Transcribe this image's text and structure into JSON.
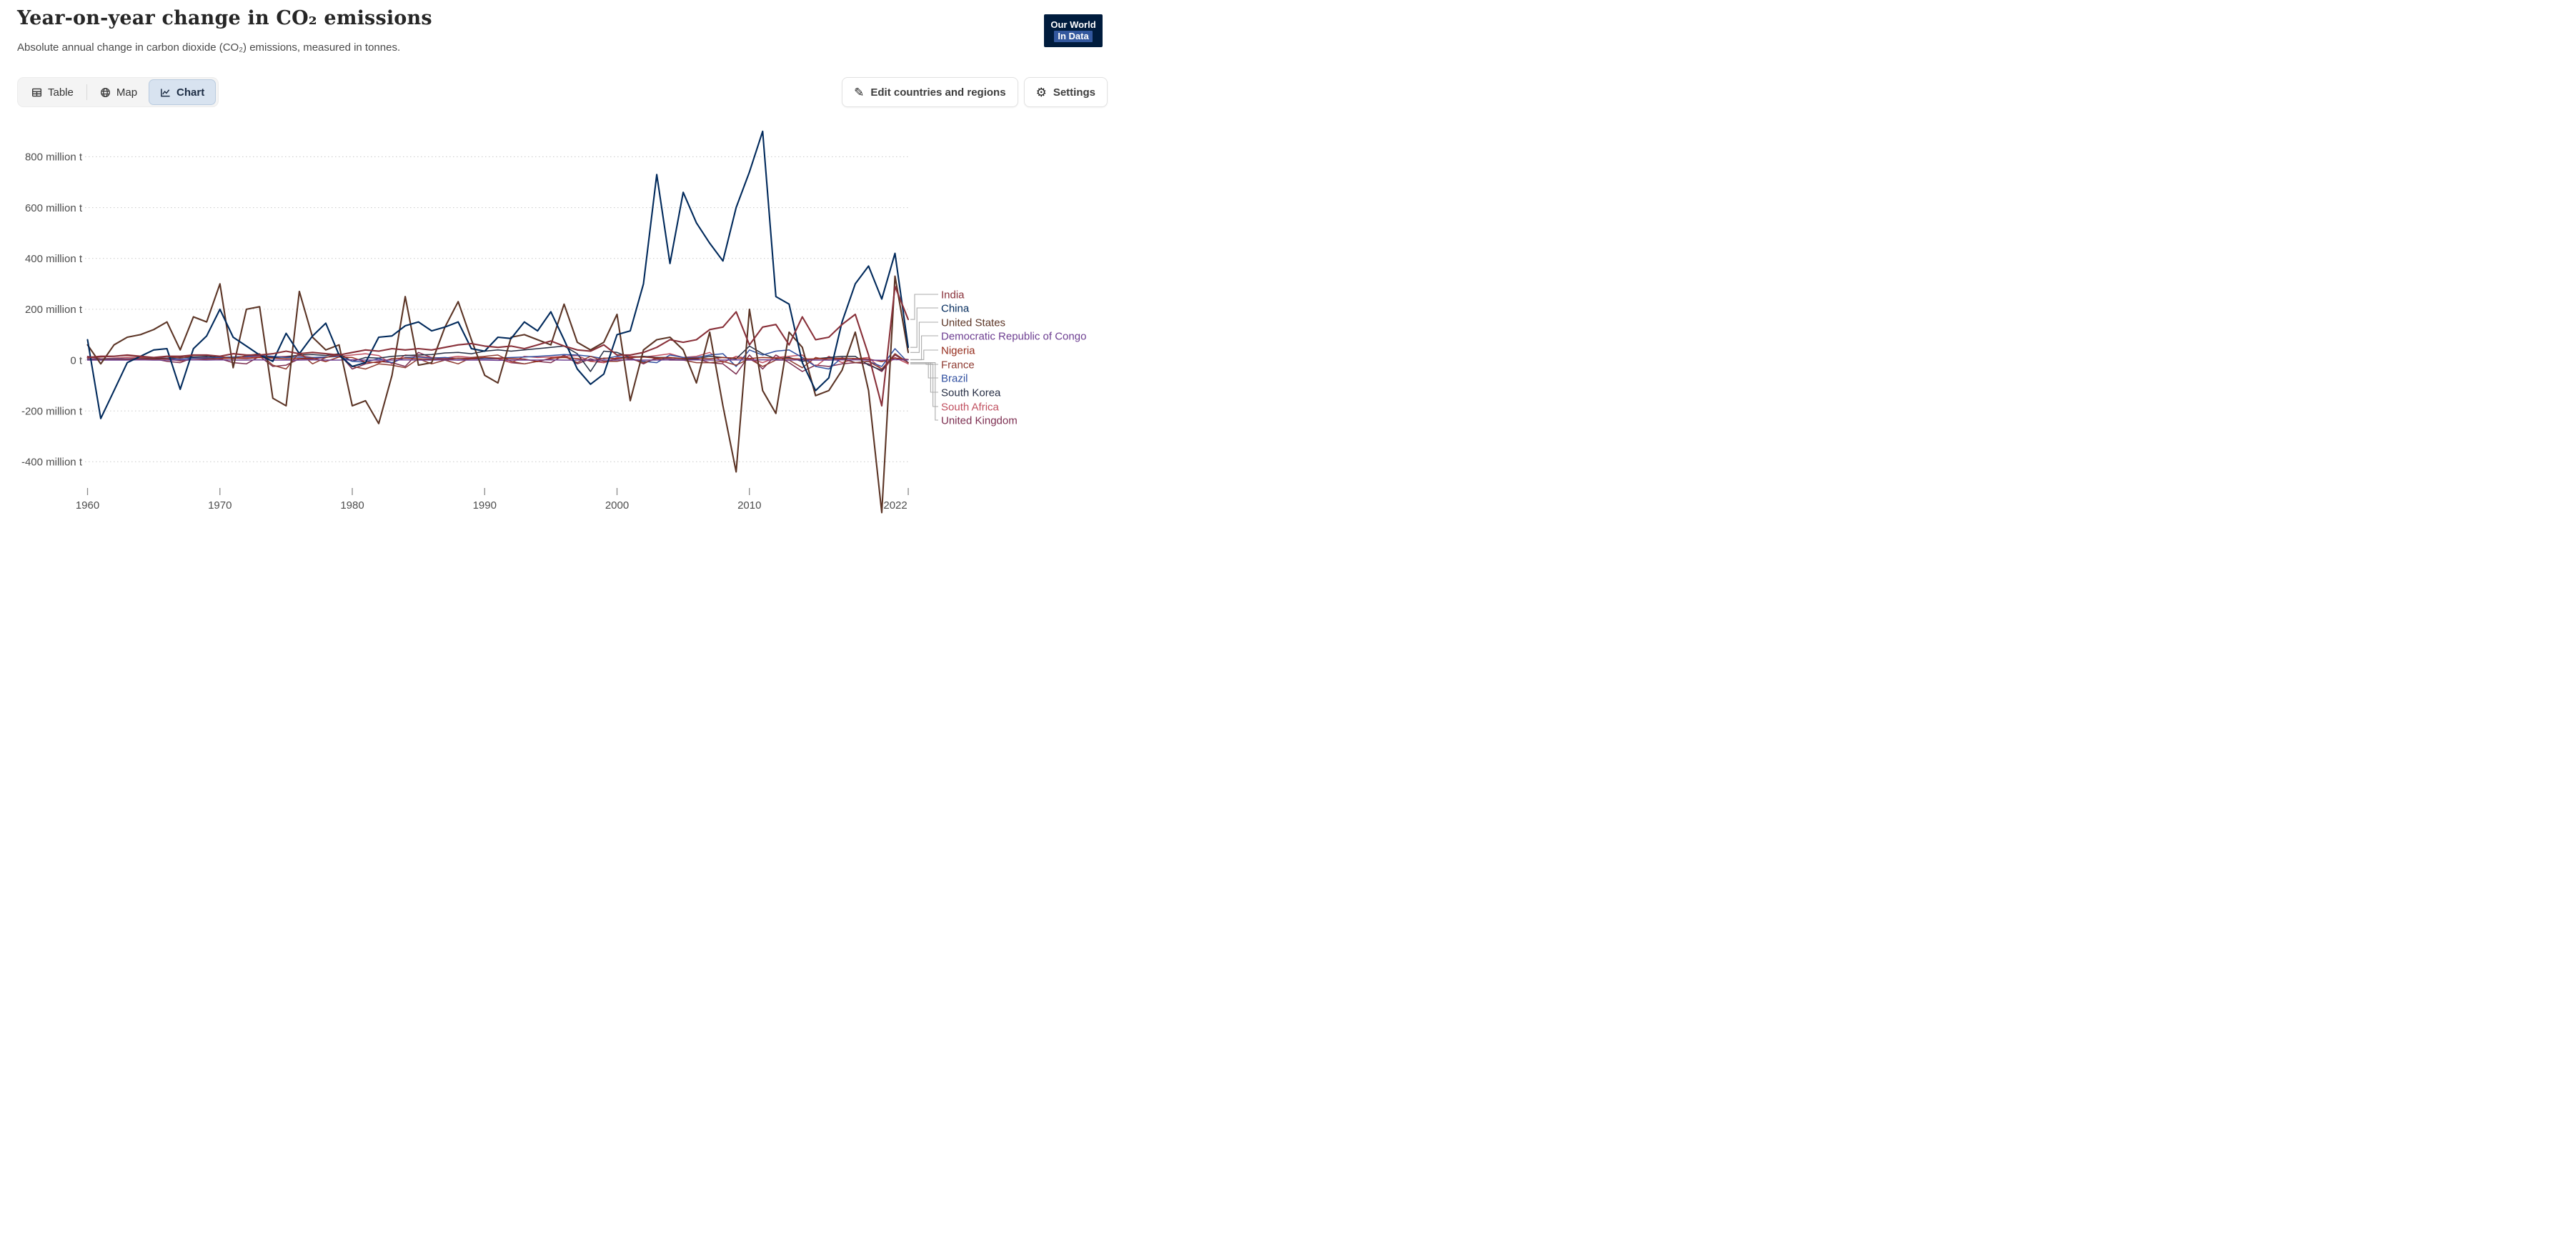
{
  "header": {
    "title": "Year-on-year change in CO₂ emissions",
    "subtitle": "Absolute annual change in carbon dioxide (CO₂) emissions, measured in tonnes.",
    "logo_line1": "Our World",
    "logo_line2": "In Data"
  },
  "toolbar": {
    "tabs": [
      {
        "label": "Table",
        "icon": "table-icon",
        "active": false
      },
      {
        "label": "Map",
        "icon": "globe-icon",
        "active": false
      },
      {
        "label": "Chart",
        "icon": "line-chart-icon",
        "active": true
      }
    ],
    "edit_button": "Edit countries and regions",
    "settings_button": "Settings",
    "icons": {
      "edit": "pencil",
      "settings": "gear"
    }
  },
  "chart_data": {
    "type": "line",
    "title": "Year-on-year change in CO₂ emissions",
    "y_unit": "million t",
    "ylim": [
      -650,
      950
    ],
    "grid": "horizontal-dotted",
    "legend_position": "right",
    "x_ticks": [
      1960,
      1970,
      1980,
      1990,
      2000,
      2010,
      2022
    ],
    "y_ticks": [
      {
        "value": 800,
        "label": "800 million t"
      },
      {
        "value": 600,
        "label": "600 million t"
      },
      {
        "value": 400,
        "label": "400 million t"
      },
      {
        "value": 200,
        "label": "200 million t"
      },
      {
        "value": 0,
        "label": "0 t"
      },
      {
        "value": -200,
        "label": "-200 million t"
      },
      {
        "value": -400,
        "label": "-400 million t"
      }
    ],
    "years": [
      1960,
      1961,
      1962,
      1963,
      1964,
      1965,
      1966,
      1967,
      1968,
      1969,
      1970,
      1971,
      1972,
      1973,
      1974,
      1975,
      1976,
      1977,
      1978,
      1979,
      1980,
      1981,
      1982,
      1983,
      1984,
      1985,
      1986,
      1987,
      1988,
      1989,
      1990,
      1991,
      1992,
      1993,
      1994,
      1995,
      1996,
      1997,
      1998,
      1999,
      2000,
      2001,
      2002,
      2003,
      2004,
      2005,
      2006,
      2007,
      2008,
      2009,
      2010,
      2011,
      2012,
      2013,
      2014,
      2015,
      2016,
      2017,
      2018,
      2019,
      2020,
      2021,
      2022
    ],
    "series": [
      {
        "name": "India",
        "slug": "india",
        "color": "#883039",
        "values": [
          10,
          15,
          15,
          20,
          15,
          10,
          15,
          15,
          20,
          20,
          15,
          25,
          20,
          20,
          25,
          35,
          25,
          30,
          25,
          20,
          30,
          40,
          35,
          45,
          40,
          45,
          40,
          50,
          60,
          65,
          55,
          50,
          55,
          45,
          60,
          75,
          55,
          40,
          35,
          60,
          20,
          20,
          30,
          50,
          80,
          70,
          80,
          120,
          130,
          190,
          60,
          130,
          140,
          60,
          170,
          80,
          90,
          140,
          180,
          20,
          -180,
          290,
          160
        ]
      },
      {
        "name": "China",
        "slug": "china",
        "color": "#00295B",
        "values": [
          80,
          -230,
          -120,
          -10,
          15,
          40,
          45,
          -115,
          45,
          95,
          200,
          90,
          55,
          20,
          -5,
          105,
          25,
          95,
          145,
          20,
          -25,
          -10,
          90,
          95,
          135,
          150,
          115,
          130,
          150,
          45,
          35,
          90,
          85,
          150,
          115,
          190,
          80,
          -35,
          -95,
          -55,
          100,
          115,
          300,
          730,
          380,
          660,
          540,
          460,
          390,
          600,
          740,
          900,
          250,
          220,
          -10,
          -120,
          -70,
          150,
          300,
          370,
          240,
          420,
          50
        ]
      },
      {
        "name": "United States",
        "slug": "united-states",
        "color": "#5B3425",
        "values": [
          60,
          -15,
          60,
          90,
          100,
          120,
          150,
          40,
          170,
          150,
          300,
          -30,
          200,
          210,
          -150,
          -180,
          270,
          90,
          40,
          60,
          -180,
          -160,
          -250,
          -60,
          250,
          -20,
          -10,
          130,
          230,
          80,
          -60,
          -90,
          90,
          100,
          80,
          60,
          220,
          70,
          40,
          70,
          180,
          -160,
          40,
          80,
          90,
          40,
          -90,
          110,
          -180,
          -440,
          200,
          -120,
          -210,
          110,
          50,
          -140,
          -120,
          -40,
          110,
          -120,
          -600,
          330,
          30
        ]
      },
      {
        "name": "Democratic Republic of Congo",
        "slug": "democratic-republic-of-congo",
        "color": "#6D3E91",
        "values": [
          0,
          0,
          0,
          0,
          1,
          0,
          0,
          0,
          1,
          0,
          1,
          0,
          0,
          1,
          0,
          0,
          0,
          1,
          0,
          0,
          1,
          0,
          0,
          0,
          1,
          0,
          0,
          1,
          0,
          0,
          0,
          -1,
          0,
          0,
          0,
          1,
          0,
          0,
          0,
          0,
          0,
          1,
          0,
          0,
          1,
          0,
          1,
          0,
          0,
          1,
          0,
          1,
          1,
          0,
          1,
          0,
          0,
          1,
          1,
          0,
          -1,
          2,
          1
        ]
      },
      {
        "name": "Nigeria",
        "slug": "nigeria",
        "color": "#952C1C",
        "values": [
          1,
          2,
          2,
          3,
          3,
          4,
          5,
          -3,
          2,
          4,
          6,
          8,
          6,
          10,
          8,
          5,
          6,
          8,
          -6,
          12,
          10,
          -8,
          -10,
          6,
          8,
          5,
          3,
          4,
          8,
          6,
          10,
          8,
          6,
          4,
          -6,
          8,
          10,
          6,
          -4,
          8,
          6,
          10,
          12,
          8,
          10,
          6,
          8,
          5,
          10,
          8,
          6,
          10,
          8,
          6,
          4,
          5,
          6,
          8,
          6,
          4,
          -6,
          8,
          2
        ]
      },
      {
        "name": "France",
        "slug": "france",
        "color": "#8E3A30",
        "values": [
          10,
          12,
          15,
          18,
          12,
          10,
          15,
          8,
          18,
          20,
          15,
          5,
          18,
          25,
          -20,
          -35,
          30,
          -15,
          10,
          20,
          -25,
          -35,
          -15,
          -20,
          -30,
          5,
          -15,
          0,
          -15,
          10,
          15,
          20,
          -5,
          -15,
          -5,
          5,
          15,
          -10,
          15,
          -5,
          -5,
          5,
          -10,
          5,
          0,
          0,
          -10,
          -10,
          -5,
          -20,
          5,
          -25,
          0,
          0,
          -30,
          10,
          0,
          5,
          -10,
          -5,
          -35,
          25,
          -10
        ]
      },
      {
        "name": "Brazil",
        "slug": "brazil",
        "color": "#3150A0",
        "values": [
          4,
          4,
          5,
          5,
          4,
          3,
          6,
          4,
          8,
          8,
          10,
          12,
          14,
          18,
          15,
          10,
          12,
          10,
          12,
          14,
          -5,
          -8,
          6,
          -10,
          10,
          12,
          8,
          10,
          6,
          8,
          5,
          8,
          10,
          12,
          15,
          18,
          22,
          20,
          15,
          5,
          15,
          5,
          -5,
          -10,
          20,
          10,
          10,
          20,
          25,
          -25,
          40,
          20,
          35,
          40,
          10,
          -25,
          -35,
          10,
          -10,
          -5,
          -25,
          45,
          -10
        ]
      },
      {
        "name": "South Korea",
        "slug": "south-korea",
        "color": "#252D43",
        "values": [
          2,
          3,
          3,
          4,
          5,
          6,
          8,
          10,
          12,
          15,
          10,
          12,
          14,
          18,
          10,
          12,
          20,
          22,
          18,
          25,
          -5,
          10,
          8,
          15,
          18,
          20,
          22,
          28,
          30,
          25,
          35,
          40,
          35,
          40,
          45,
          50,
          55,
          25,
          -45,
          35,
          30,
          10,
          15,
          10,
          10,
          5,
          5,
          15,
          10,
          5,
          55,
          25,
          5,
          10,
          -5,
          5,
          10,
          15,
          15,
          -20,
          -40,
          25,
          -10
        ]
      },
      {
        "name": "South Africa",
        "slug": "south-africa",
        "color": "#C04F5F",
        "values": [
          6,
          5,
          8,
          10,
          8,
          10,
          8,
          10,
          12,
          8,
          10,
          12,
          10,
          14,
          12,
          15,
          18,
          10,
          12,
          15,
          20,
          25,
          18,
          -15,
          20,
          15,
          10,
          8,
          15,
          10,
          5,
          8,
          -10,
          15,
          10,
          12,
          15,
          18,
          -5,
          -10,
          10,
          15,
          12,
          18,
          25,
          10,
          15,
          30,
          -10,
          15,
          5,
          -10,
          10,
          15,
          20,
          -25,
          15,
          -10,
          5,
          10,
          -35,
          10,
          -15
        ]
      },
      {
        "name": "United Kingdom",
        "slug": "united-kingdom",
        "color": "#7C2E50",
        "values": [
          15,
          5,
          5,
          5,
          5,
          5,
          -5,
          -10,
          10,
          10,
          5,
          -10,
          -15,
          15,
          -25,
          -20,
          5,
          5,
          10,
          25,
          -35,
          -15,
          -5,
          -10,
          -25,
          30,
          10,
          5,
          0,
          5,
          5,
          5,
          -10,
          -15,
          -5,
          -10,
          20,
          -15,
          5,
          -10,
          5,
          10,
          -15,
          10,
          5,
          0,
          5,
          -10,
          -15,
          -55,
          20,
          -35,
          20,
          -10,
          -45,
          -20,
          -25,
          -15,
          -10,
          -15,
          -45,
          20,
          -10
        ]
      }
    ]
  }
}
